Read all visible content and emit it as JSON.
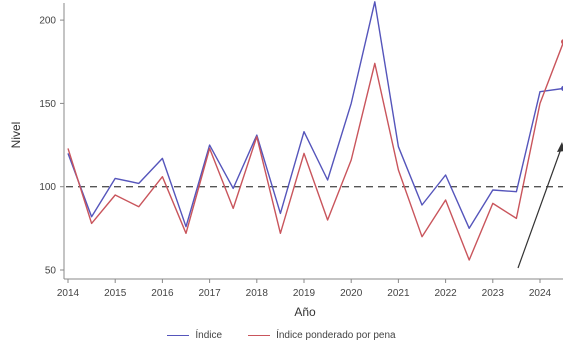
{
  "chart_data": {
    "type": "line",
    "xlabel": "Año",
    "ylabel": "Nivel",
    "xlim": [
      2014,
      2024.5
    ],
    "ylim": [
      50,
      215
    ],
    "x_ticks": [
      2014,
      2015,
      2016,
      2017,
      2018,
      2019,
      2020,
      2021,
      2022,
      2023,
      2024
    ],
    "y_ticks": [
      50,
      100,
      150,
      200
    ],
    "reference_line": {
      "y": 100,
      "style": "dashed"
    },
    "x": [
      2014,
      2014.5,
      2015,
      2015.5,
      2016,
      2016.5,
      2017,
      2017.5,
      2018,
      2018.5,
      2019,
      2019.5,
      2020,
      2020.5,
      2021,
      2021.5,
      2022,
      2022.5,
      2023,
      2023.5,
      2024,
      2024.5
    ],
    "series": [
      {
        "name": "Índice",
        "color": "#5555bb",
        "values": [
          120,
          82,
          105,
          102,
          117,
          76,
          125,
          99,
          131,
          84,
          133,
          104,
          150,
          211,
          124,
          89,
          107,
          75,
          98,
          97,
          157,
          159
        ]
      },
      {
        "name": "Índice ponderado por pena",
        "color": "#c9555c",
        "values": [
          123,
          78,
          95,
          88,
          106,
          72,
          123,
          87,
          130,
          72,
          120,
          80,
          116,
          174,
          110,
          70,
          92,
          56,
          90,
          81,
          150,
          187
        ]
      }
    ],
    "legend_position": "bottom-center",
    "grid": false
  }
}
